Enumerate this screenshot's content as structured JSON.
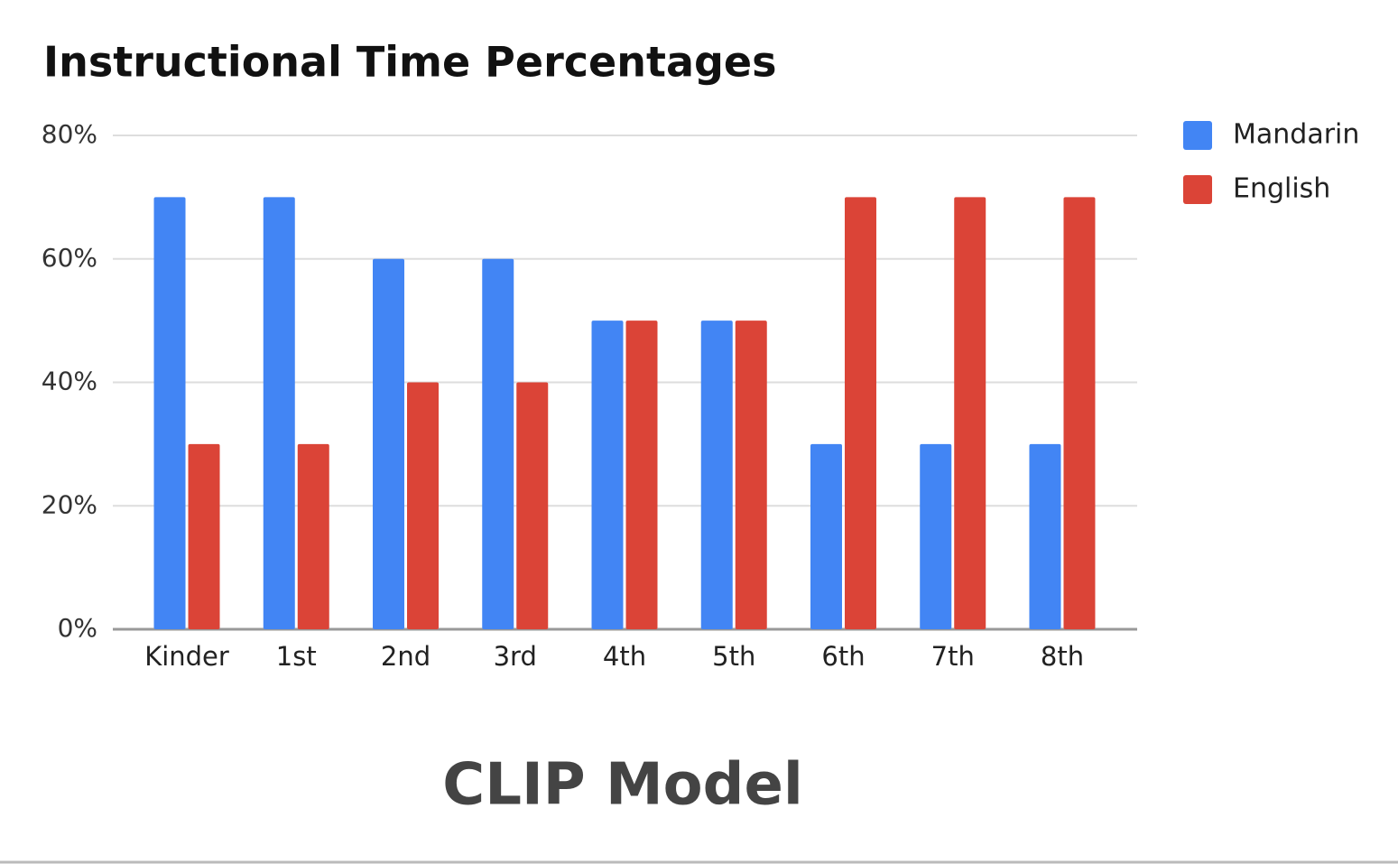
{
  "chart_data": {
    "type": "bar",
    "title": "Instructional Time Percentages",
    "annotation": "CLIP Model",
    "categories": [
      "Kinder",
      "1st",
      "2nd",
      "3rd",
      "4th",
      "5th",
      "6th",
      "7th",
      "8th"
    ],
    "series": [
      {
        "name": "Mandarin",
        "color": "#4285f4",
        "values": [
          70,
          70,
          60,
          60,
          50,
          50,
          30,
          30,
          30
        ]
      },
      {
        "name": "English",
        "color": "#db4437",
        "values": [
          30,
          30,
          40,
          40,
          50,
          50,
          70,
          70,
          70
        ]
      }
    ],
    "ylim": [
      0,
      80
    ],
    "yticks": [
      {
        "value": 0,
        "label": "0%"
      },
      {
        "value": 20,
        "label": "20%"
      },
      {
        "value": 40,
        "label": "40%"
      },
      {
        "value": 60,
        "label": "60%"
      },
      {
        "value": 80,
        "label": "80%"
      }
    ],
    "grid": true,
    "legend": "right"
  }
}
